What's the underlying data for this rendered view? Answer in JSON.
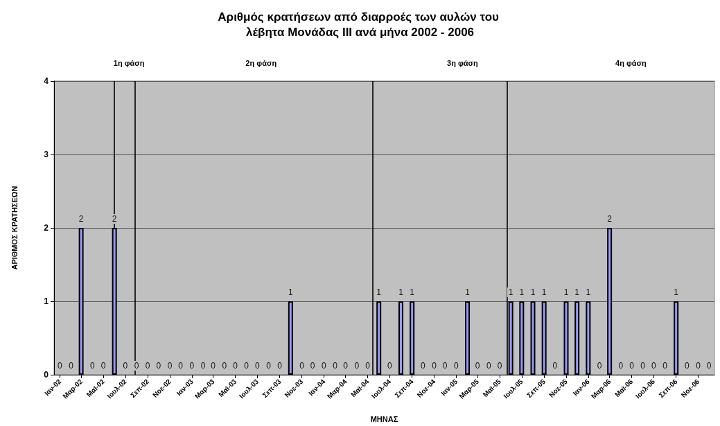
{
  "chart_data": {
    "type": "bar",
    "title": "Αριθμός κρατήσεων από διαρροές των αυλών του λέβητα Μονάδας ΙΙΙ ανά μήνα 2002 - 2006",
    "xlabel": "ΜΗΝΑΣ",
    "ylabel": "ΑΡΙΘΜΟΣ ΚΡΑΤΗΣΕΩΝ",
    "x": [
      "2002-01",
      "2002-02",
      "2002-03",
      "2002-04",
      "2002-05",
      "2002-06",
      "2002-07",
      "2002-08",
      "2002-09",
      "2002-10",
      "2002-11",
      "2002-12",
      "2003-01",
      "2003-02",
      "2003-03",
      "2003-04",
      "2003-05",
      "2003-06",
      "2003-07",
      "2003-08",
      "2003-09",
      "2003-10",
      "2003-11",
      "2003-12",
      "2004-01",
      "2004-02",
      "2004-03",
      "2004-04",
      "2004-05",
      "2004-06",
      "2004-07",
      "2004-08",
      "2004-09",
      "2004-10",
      "2004-11",
      "2004-12",
      "2005-01",
      "2005-02",
      "2005-03",
      "2005-04",
      "2005-05",
      "2005-06",
      "2005-07",
      "2005-08",
      "2005-09",
      "2005-10",
      "2005-11",
      "2005-12",
      "2006-01",
      "2006-02",
      "2006-03",
      "2006-04",
      "2006-05",
      "2006-06",
      "2006-07",
      "2006-08",
      "2006-09",
      "2006-10",
      "2006-11",
      "2006-12"
    ],
    "values": [
      0,
      0,
      2,
      0,
      0,
      2,
      0,
      0,
      0,
      0,
      0,
      0,
      0,
      0,
      0,
      0,
      0,
      0,
      0,
      0,
      0,
      1,
      0,
      0,
      0,
      0,
      0,
      0,
      0,
      1,
      0,
      1,
      1,
      0,
      0,
      0,
      0,
      1,
      0,
      0,
      0,
      1,
      1,
      1,
      1,
      0,
      1,
      1,
      1,
      0,
      2,
      0,
      0,
      0,
      0,
      0,
      1,
      0,
      0,
      0
    ],
    "color": "#9999ff",
    "data_labels": true,
    "xlim": [
      "2001-12-16",
      "2006-12-16"
    ],
    "xticks": [
      {
        "value": "2002-01",
        "label": "Ιαν-02"
      },
      {
        "value": "2002-03",
        "label": "Μαρ-02"
      },
      {
        "value": "2002-05",
        "label": "Μαϊ-02"
      },
      {
        "value": "2002-07",
        "label": "Ιουλ-02"
      },
      {
        "value": "2002-09",
        "label": "Σεπ-02"
      },
      {
        "value": "2002-11",
        "label": "Νοε-02"
      },
      {
        "value": "2003-01",
        "label": "Ιαν-03"
      },
      {
        "value": "2003-03",
        "label": "Μαρ-03"
      },
      {
        "value": "2003-05",
        "label": "Μαϊ-03"
      },
      {
        "value": "2003-07",
        "label": "Ιουλ-03"
      },
      {
        "value": "2003-09",
        "label": "Σεπ-03"
      },
      {
        "value": "2003-11",
        "label": "Νοε-03"
      },
      {
        "value": "2004-01",
        "label": "Ιαν-04"
      },
      {
        "value": "2004-03",
        "label": "Μαρ-04"
      },
      {
        "value": "2004-05",
        "label": "Μαϊ-04"
      },
      {
        "value": "2004-07",
        "label": "Ιουλ-04"
      },
      {
        "value": "2004-09",
        "label": "Σεπ-04"
      },
      {
        "value": "2004-11",
        "label": "Νοε-04"
      },
      {
        "value": "2005-01",
        "label": "Ιαν-05"
      },
      {
        "value": "2005-03",
        "label": "Μαρ-05"
      },
      {
        "value": "2005-05",
        "label": "Μαϊ-05"
      },
      {
        "value": "2005-07",
        "label": "Ιουλ-05"
      },
      {
        "value": "2005-09",
        "label": "Σεπ-05"
      },
      {
        "value": "2005-11",
        "label": "Νοε-05"
      },
      {
        "value": "2006-01",
        "label": "Ιαν-06"
      },
      {
        "value": "2006-03",
        "label": "Μαρ-06"
      },
      {
        "value": "2006-05",
        "label": "Μαϊ-06"
      },
      {
        "value": "2006-07",
        "label": "Ιουλ-06"
      },
      {
        "value": "2006-09",
        "label": "Σεπ-06"
      },
      {
        "value": "2006-11",
        "label": "Νοε-06"
      }
    ],
    "ylim": [
      0,
      4
    ],
    "yticks": [
      0,
      1,
      2,
      3,
      4
    ],
    "grid": "y",
    "ref_lines": [
      {
        "axis": "x",
        "value": "2002-06-01",
        "color": "#000000"
      },
      {
        "axis": "x",
        "value": "2002-07-27",
        "color": "#000000"
      },
      {
        "axis": "x",
        "value": "2004-05-15",
        "color": "#000000"
      },
      {
        "axis": "x",
        "value": "2005-05-21",
        "color": "#000000"
      }
    ],
    "annotations": [
      "1η φάση",
      "2η φάση",
      "3η φάση",
      "4η φάση"
    ]
  }
}
